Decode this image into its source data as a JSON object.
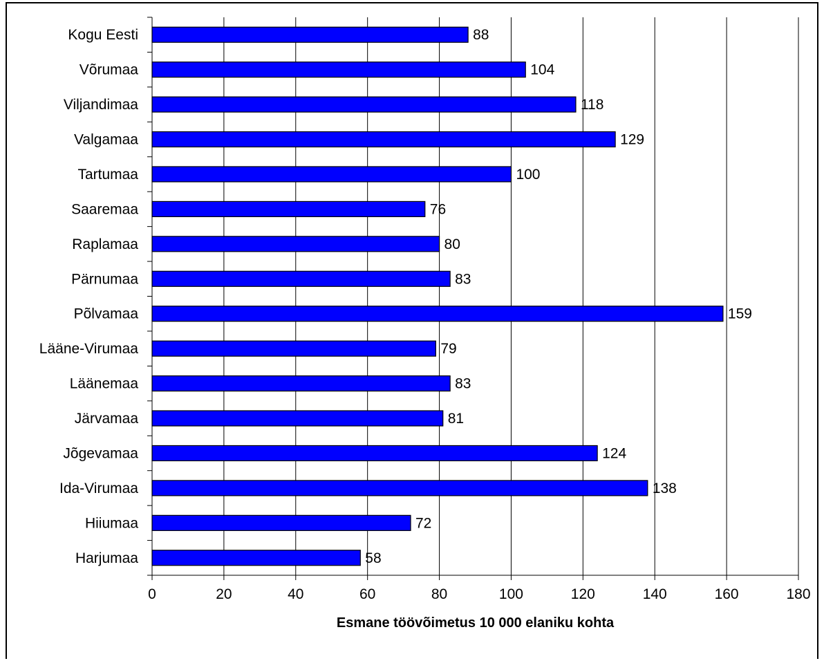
{
  "chart_data": {
    "type": "bar",
    "orientation": "horizontal",
    "title": "",
    "xlabel": "Esmane töövõimetus 10 000 elaniku kohta",
    "ylabel": "",
    "xlim": [
      0,
      180
    ],
    "xticks": [
      0,
      20,
      40,
      60,
      80,
      100,
      120,
      140,
      160,
      180
    ],
    "grid": "vertical",
    "legend": "none",
    "bar_color": "#0000ff",
    "categories": [
      "Kogu Eesti",
      "Võrumaa",
      "Viljandimaa",
      "Valgamaa",
      "Tartumaa",
      "Saaremaa",
      "Raplamaa",
      "Pärnumaa",
      "Põlvamaa",
      "Lääne-Virumaa",
      "Läänemaa",
      "Järvamaa",
      "Jõgevamaa",
      "Ida-Virumaa",
      "Hiiumaa",
      "Harjumaa"
    ],
    "values": [
      88,
      104,
      118,
      129,
      100,
      76,
      80,
      83,
      159,
      79,
      83,
      81,
      124,
      138,
      72,
      58
    ],
    "data_labels": [
      "88",
      "104",
      "118",
      "129",
      "100",
      "76",
      "80",
      "83",
      "159",
      "79",
      "83",
      "81",
      "124",
      "138",
      "72",
      "58"
    ]
  }
}
